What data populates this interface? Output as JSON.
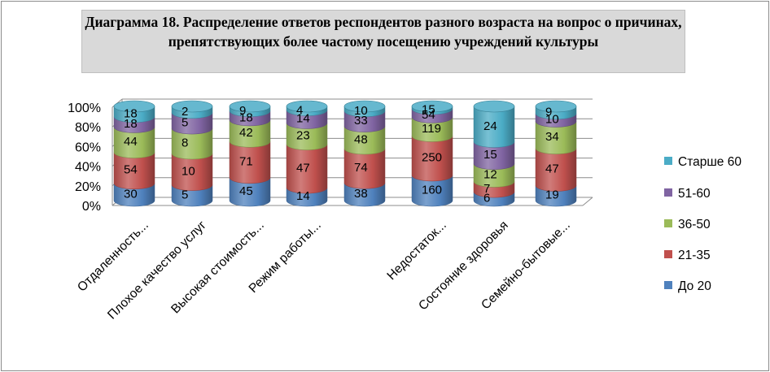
{
  "chart_data": {
    "type": "bar",
    "stacked": "percent",
    "style": "3d-cylinder",
    "title": "Диаграмма 18. Распределение ответов респондентов разного возраста на вопрос о причинах, препятствующих более частому посещению учреждений культуры",
    "categories": [
      "Отдаленность...",
      "Плохое качество услуг",
      "Высокая стоимость...",
      "Режим работы...",
      "",
      "Недостаток...",
      "Состояние здоровья",
      "Семейно-бытовые..."
    ],
    "series": [
      {
        "name": "До 20",
        "color": "#4f81bd",
        "values": [
          30,
          5,
          45,
          14,
          38,
          160,
          6,
          19
        ]
      },
      {
        "name": "21-35",
        "color": "#c0504d",
        "values": [
          54,
          10,
          71,
          47,
          74,
          250,
          7,
          47
        ]
      },
      {
        "name": "36-50",
        "color": "#9bbb59",
        "values": [
          44,
          8,
          42,
          23,
          48,
          119,
          12,
          34
        ]
      },
      {
        "name": "51-60",
        "color": "#8064a2",
        "values": [
          18,
          5,
          18,
          14,
          33,
          54,
          15,
          10
        ]
      },
      {
        "name": "Старше 60",
        "color": "#4bacc6",
        "values": [
          18,
          2,
          9,
          4,
          10,
          15,
          24,
          9
        ]
      }
    ],
    "yticks": [
      "0%",
      "20%",
      "40%",
      "60%",
      "80%",
      "100%"
    ],
    "ylim": [
      0,
      100
    ],
    "grid": true,
    "legend": "right"
  }
}
